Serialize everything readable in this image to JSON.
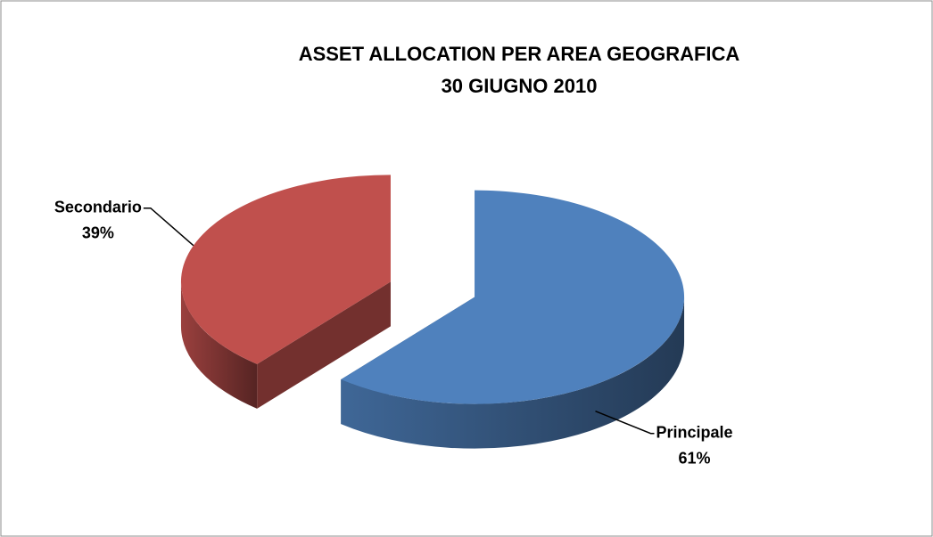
{
  "chart_data": {
    "type": "pie3d",
    "title": "ASSET ALLOCATION PER AREA GEOGRAFICA",
    "subtitle": "30 GIUGNO 2010",
    "categories": [
      "Principale",
      "Secondario"
    ],
    "values": [
      61,
      39
    ],
    "value_labels": [
      "61%",
      "39%"
    ],
    "colors": [
      "#4f81bd",
      "#c0504d"
    ]
  }
}
